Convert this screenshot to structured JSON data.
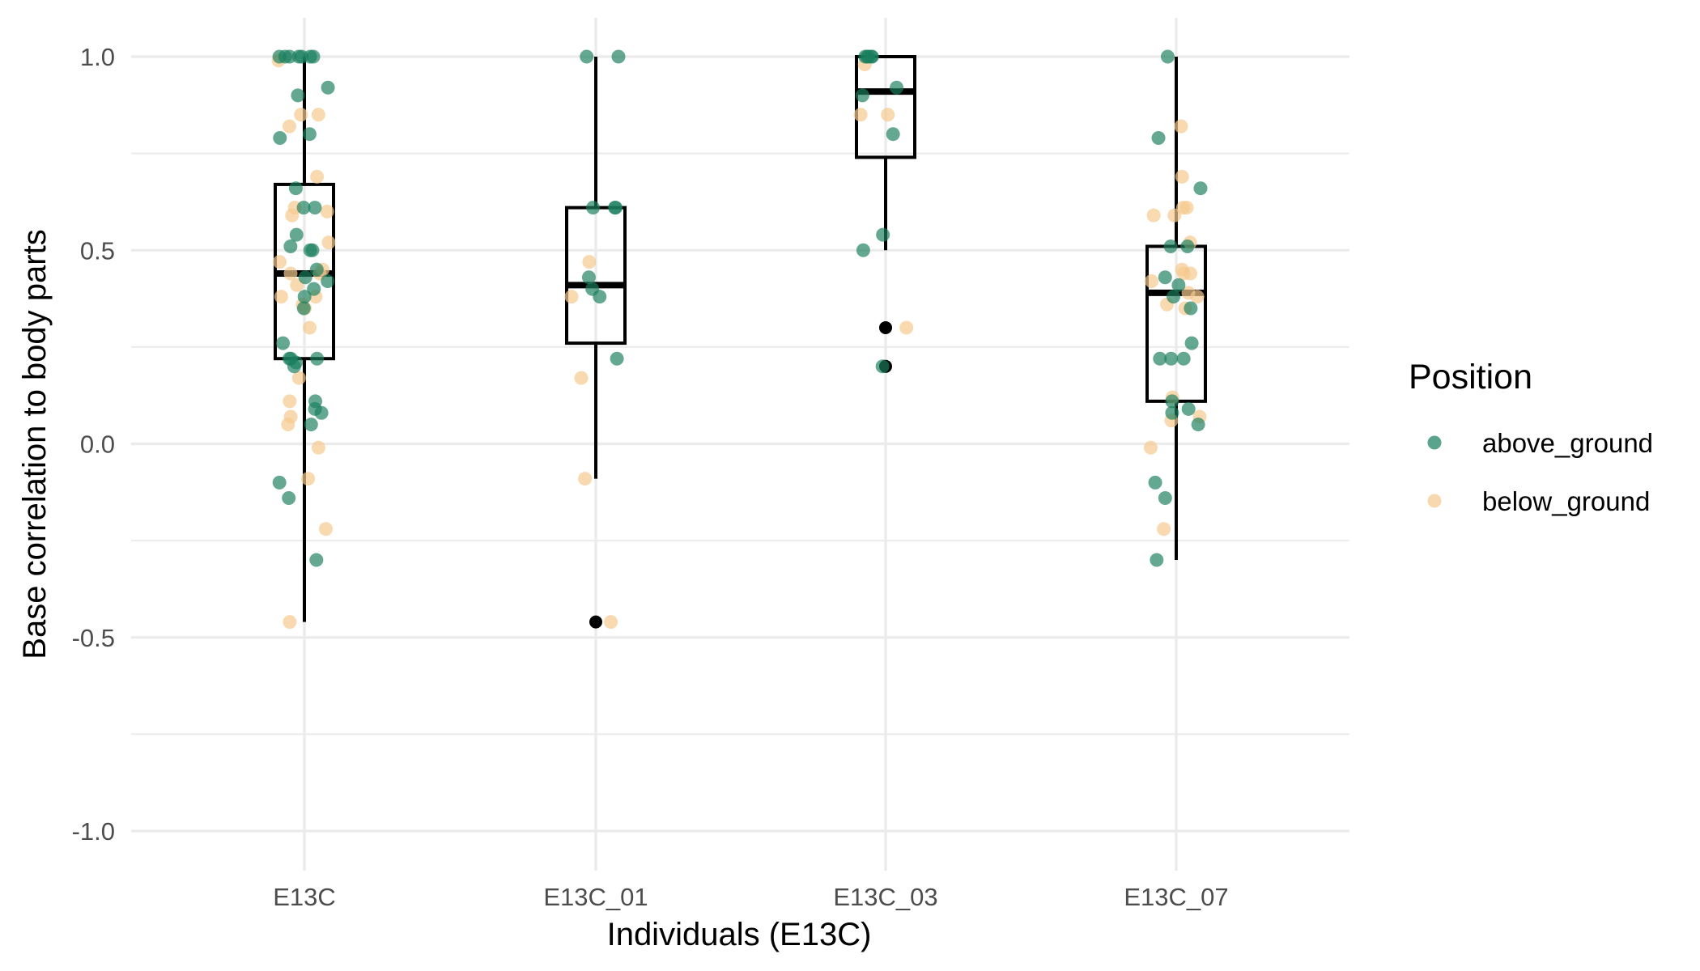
{
  "chart_data": {
    "type": "boxplot",
    "title": "",
    "xlabel": "Individuals (E13C)",
    "ylabel": "Base correlation to body parts",
    "categories": [
      "E13C",
      "E13C_01",
      "E13C_03",
      "E13C_07"
    ],
    "ylim": [
      -1.0,
      1.0
    ],
    "y_tick_values": [
      -1.0,
      -0.5,
      0.0,
      0.5,
      1.0
    ],
    "y_tick_labels": [
      "-1.0",
      "-0.5",
      "0.0",
      "0.5",
      "1.0"
    ],
    "grid": true,
    "legend": {
      "title": "Position",
      "placement": "right",
      "entries": [
        {
          "label": "above_ground",
          "color": "#1b7f5f"
        },
        {
          "label": "below_ground",
          "color": "#f5c98f"
        }
      ]
    },
    "colors": {
      "above_ground": "#1b7f5f",
      "below_ground": "#f5c98f",
      "box_stroke": "#000000",
      "outlier": "#000000"
    },
    "boxes": [
      {
        "category": "E13C",
        "q1": 0.22,
        "median": 0.44,
        "q3": 0.67,
        "whisker_low": -0.46,
        "whisker_high": 1.0,
        "outliers": []
      },
      {
        "category": "E13C_01",
        "q1": 0.26,
        "median": 0.41,
        "q3": 0.61,
        "whisker_low": -0.09,
        "whisker_high": 1.0,
        "outliers": [
          -0.46
        ]
      },
      {
        "category": "E13C_03",
        "q1": 0.74,
        "median": 0.91,
        "q3": 1.0,
        "whisker_low": 0.5,
        "whisker_high": 1.0,
        "outliers": [
          0.3,
          0.2
        ]
      },
      {
        "category": "E13C_07",
        "q1": 0.11,
        "median": 0.39,
        "q3": 0.51,
        "whisker_low": -0.3,
        "whisker_high": 1.0,
        "outliers": []
      }
    ],
    "points": {
      "E13C": {
        "above_ground": [
          1.0,
          1.0,
          1.0,
          1.0,
          1.0,
          1.0,
          1.0,
          0.92,
          0.9,
          0.8,
          0.79,
          0.66,
          0.61,
          0.61,
          0.54,
          0.51,
          0.5,
          0.5,
          0.45,
          0.43,
          0.42,
          0.4,
          0.38,
          0.35,
          0.26,
          0.22,
          0.22,
          0.22,
          0.21,
          0.2,
          0.11,
          0.09,
          0.08,
          0.05,
          -0.1,
          -0.14,
          -0.3
        ],
        "below_ground": [
          0.99,
          0.85,
          0.85,
          0.82,
          0.69,
          0.61,
          0.6,
          0.59,
          0.52,
          0.47,
          0.45,
          0.44,
          0.44,
          0.41,
          0.38,
          0.38,
          0.36,
          0.35,
          0.3,
          0.17,
          0.11,
          0.07,
          0.05,
          -0.01,
          -0.09,
          -0.22,
          -0.46
        ]
      },
      "E13C_01": {
        "above_ground": [
          1.0,
          1.0,
          0.61,
          0.61,
          0.61,
          0.43,
          0.4,
          0.38,
          0.22
        ],
        "below_ground": [
          0.47,
          0.38,
          0.17,
          -0.09,
          -0.46
        ]
      },
      "E13C_03": {
        "above_ground": [
          1.0,
          1.0,
          1.0,
          1.0,
          1.0,
          0.92,
          0.9,
          0.8,
          0.54,
          0.5,
          0.2
        ],
        "below_ground": [
          0.98,
          0.85,
          0.85,
          0.3
        ]
      },
      "E13C_07": {
        "above_ground": [
          1.0,
          0.79,
          0.66,
          0.51,
          0.51,
          0.43,
          0.41,
          0.38,
          0.35,
          0.26,
          0.22,
          0.22,
          0.22,
          0.11,
          0.09,
          0.08,
          0.05,
          -0.1,
          -0.14,
          -0.3
        ],
        "below_ground": [
          0.82,
          0.69,
          0.61,
          0.61,
          0.59,
          0.59,
          0.52,
          0.45,
          0.44,
          0.44,
          0.42,
          0.39,
          0.38,
          0.36,
          0.35,
          0.12,
          0.07,
          0.06,
          -0.01,
          -0.22
        ]
      }
    }
  }
}
